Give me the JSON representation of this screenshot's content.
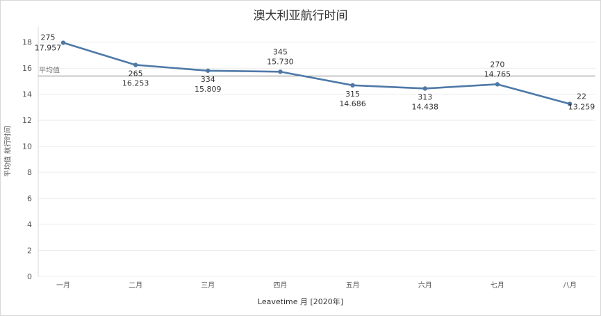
{
  "chart_data": {
    "type": "line",
    "title": "澳大利亚航行时间",
    "xlabel": "Leavetime 月 [2020年]",
    "ylabel": "平均值 航行时间",
    "categories": [
      "一月",
      "二月",
      "三月",
      "四月",
      "五月",
      "六月",
      "七月",
      "八月"
    ],
    "series": [
      {
        "values": [
          17.957,
          16.253,
          15.809,
          15.73,
          14.686,
          14.438,
          14.765,
          13.259
        ],
        "value_labels": [
          "17.957",
          "16.253",
          "15.809",
          "15.730",
          "14.686",
          "14.438",
          "14.765",
          "13.259"
        ],
        "counts": [
          "275",
          "265",
          "334",
          "345",
          "315",
          "313",
          "270",
          "22"
        ]
      }
    ],
    "reference_line": {
      "label": "平均值",
      "value": 15.4
    },
    "yticks": [
      0,
      2,
      4,
      6,
      8,
      10,
      12,
      14,
      16,
      18
    ],
    "ylim": [
      0,
      19
    ],
    "grid": "horizontal",
    "colors": {
      "line": "#4e79a7",
      "reference": "#8c8c8c",
      "grid": "#ececec"
    }
  }
}
